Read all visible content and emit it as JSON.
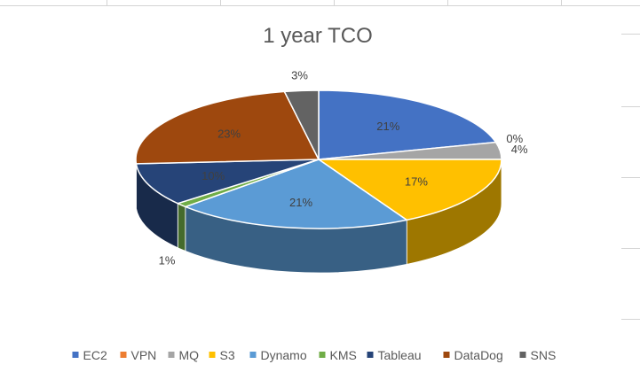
{
  "chart_data": {
    "type": "pie",
    "title": "1 year TCO",
    "slices": [
      {
        "name": "EC2",
        "value": 21,
        "label": "21%",
        "color": "#4472C4"
      },
      {
        "name": "VPN",
        "value": 0,
        "label": "0%",
        "color": "#ED7D31"
      },
      {
        "name": "MQ",
        "value": 4,
        "label": "4%",
        "color": "#A5A5A5"
      },
      {
        "name": "S3",
        "value": 17,
        "label": "17%",
        "color": "#FFC000"
      },
      {
        "name": "Dynamo",
        "value": 21,
        "label": "21%",
        "color": "#5B9BD5"
      },
      {
        "name": "KMS",
        "value": 1,
        "label": "1%",
        "color": "#70AD47"
      },
      {
        "name": "Tableau",
        "value": 10,
        "label": "10%",
        "color": "#264478"
      },
      {
        "name": "DataDog",
        "value": 23,
        "label": "23%",
        "color": "#9E480E"
      },
      {
        "name": "SNS",
        "value": 3,
        "label": "3%",
        "color": "#636363"
      }
    ],
    "style": "3d-pie",
    "legend": "bottom"
  }
}
